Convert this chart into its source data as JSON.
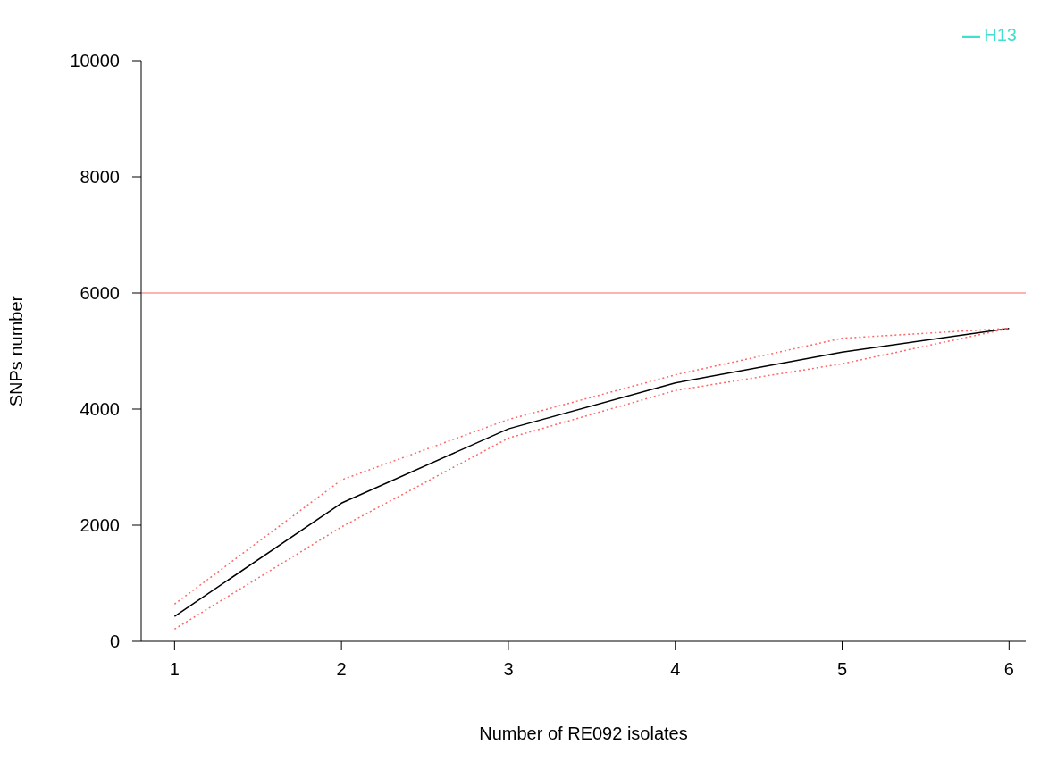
{
  "chart_data": {
    "type": "line",
    "xlabel": "Number of RE092 isolates",
    "ylabel": "SNPs number",
    "x": [
      1,
      2,
      3,
      4,
      5,
      6
    ],
    "series": [
      {
        "color": "#000000",
        "values": [
          430,
          2380,
          3660,
          4450,
          4980,
          5390
        ]
      },
      {
        "color": "#ff6666",
        "line_style": "dotted",
        "values": [
          210,
          1970,
          3500,
          4320,
          4780,
          5390
        ]
      },
      {
        "color": "#ff6666",
        "line_style": "dotted",
        "values": [
          640,
          2780,
          3820,
          4590,
          5220,
          5390
        ]
      },
      {
        "name": "H13",
        "color": "#40e0d0",
        "values": [
          null,
          null,
          null,
          null,
          null,
          null
        ]
      }
    ],
    "xlim": [
      0.8,
      6.1
    ],
    "xticks": [
      1,
      2,
      3,
      4,
      5,
      6
    ],
    "ylim": [
      0,
      10000
    ],
    "yticks": [
      0,
      2000,
      4000,
      6000,
      8000,
      10000
    ],
    "ref_lines": [
      {
        "axis": "y",
        "value": 6000,
        "color": "#ff9999"
      }
    ],
    "grid": false,
    "legend": "top right",
    "marker": "none",
    "line_style": "solid"
  }
}
